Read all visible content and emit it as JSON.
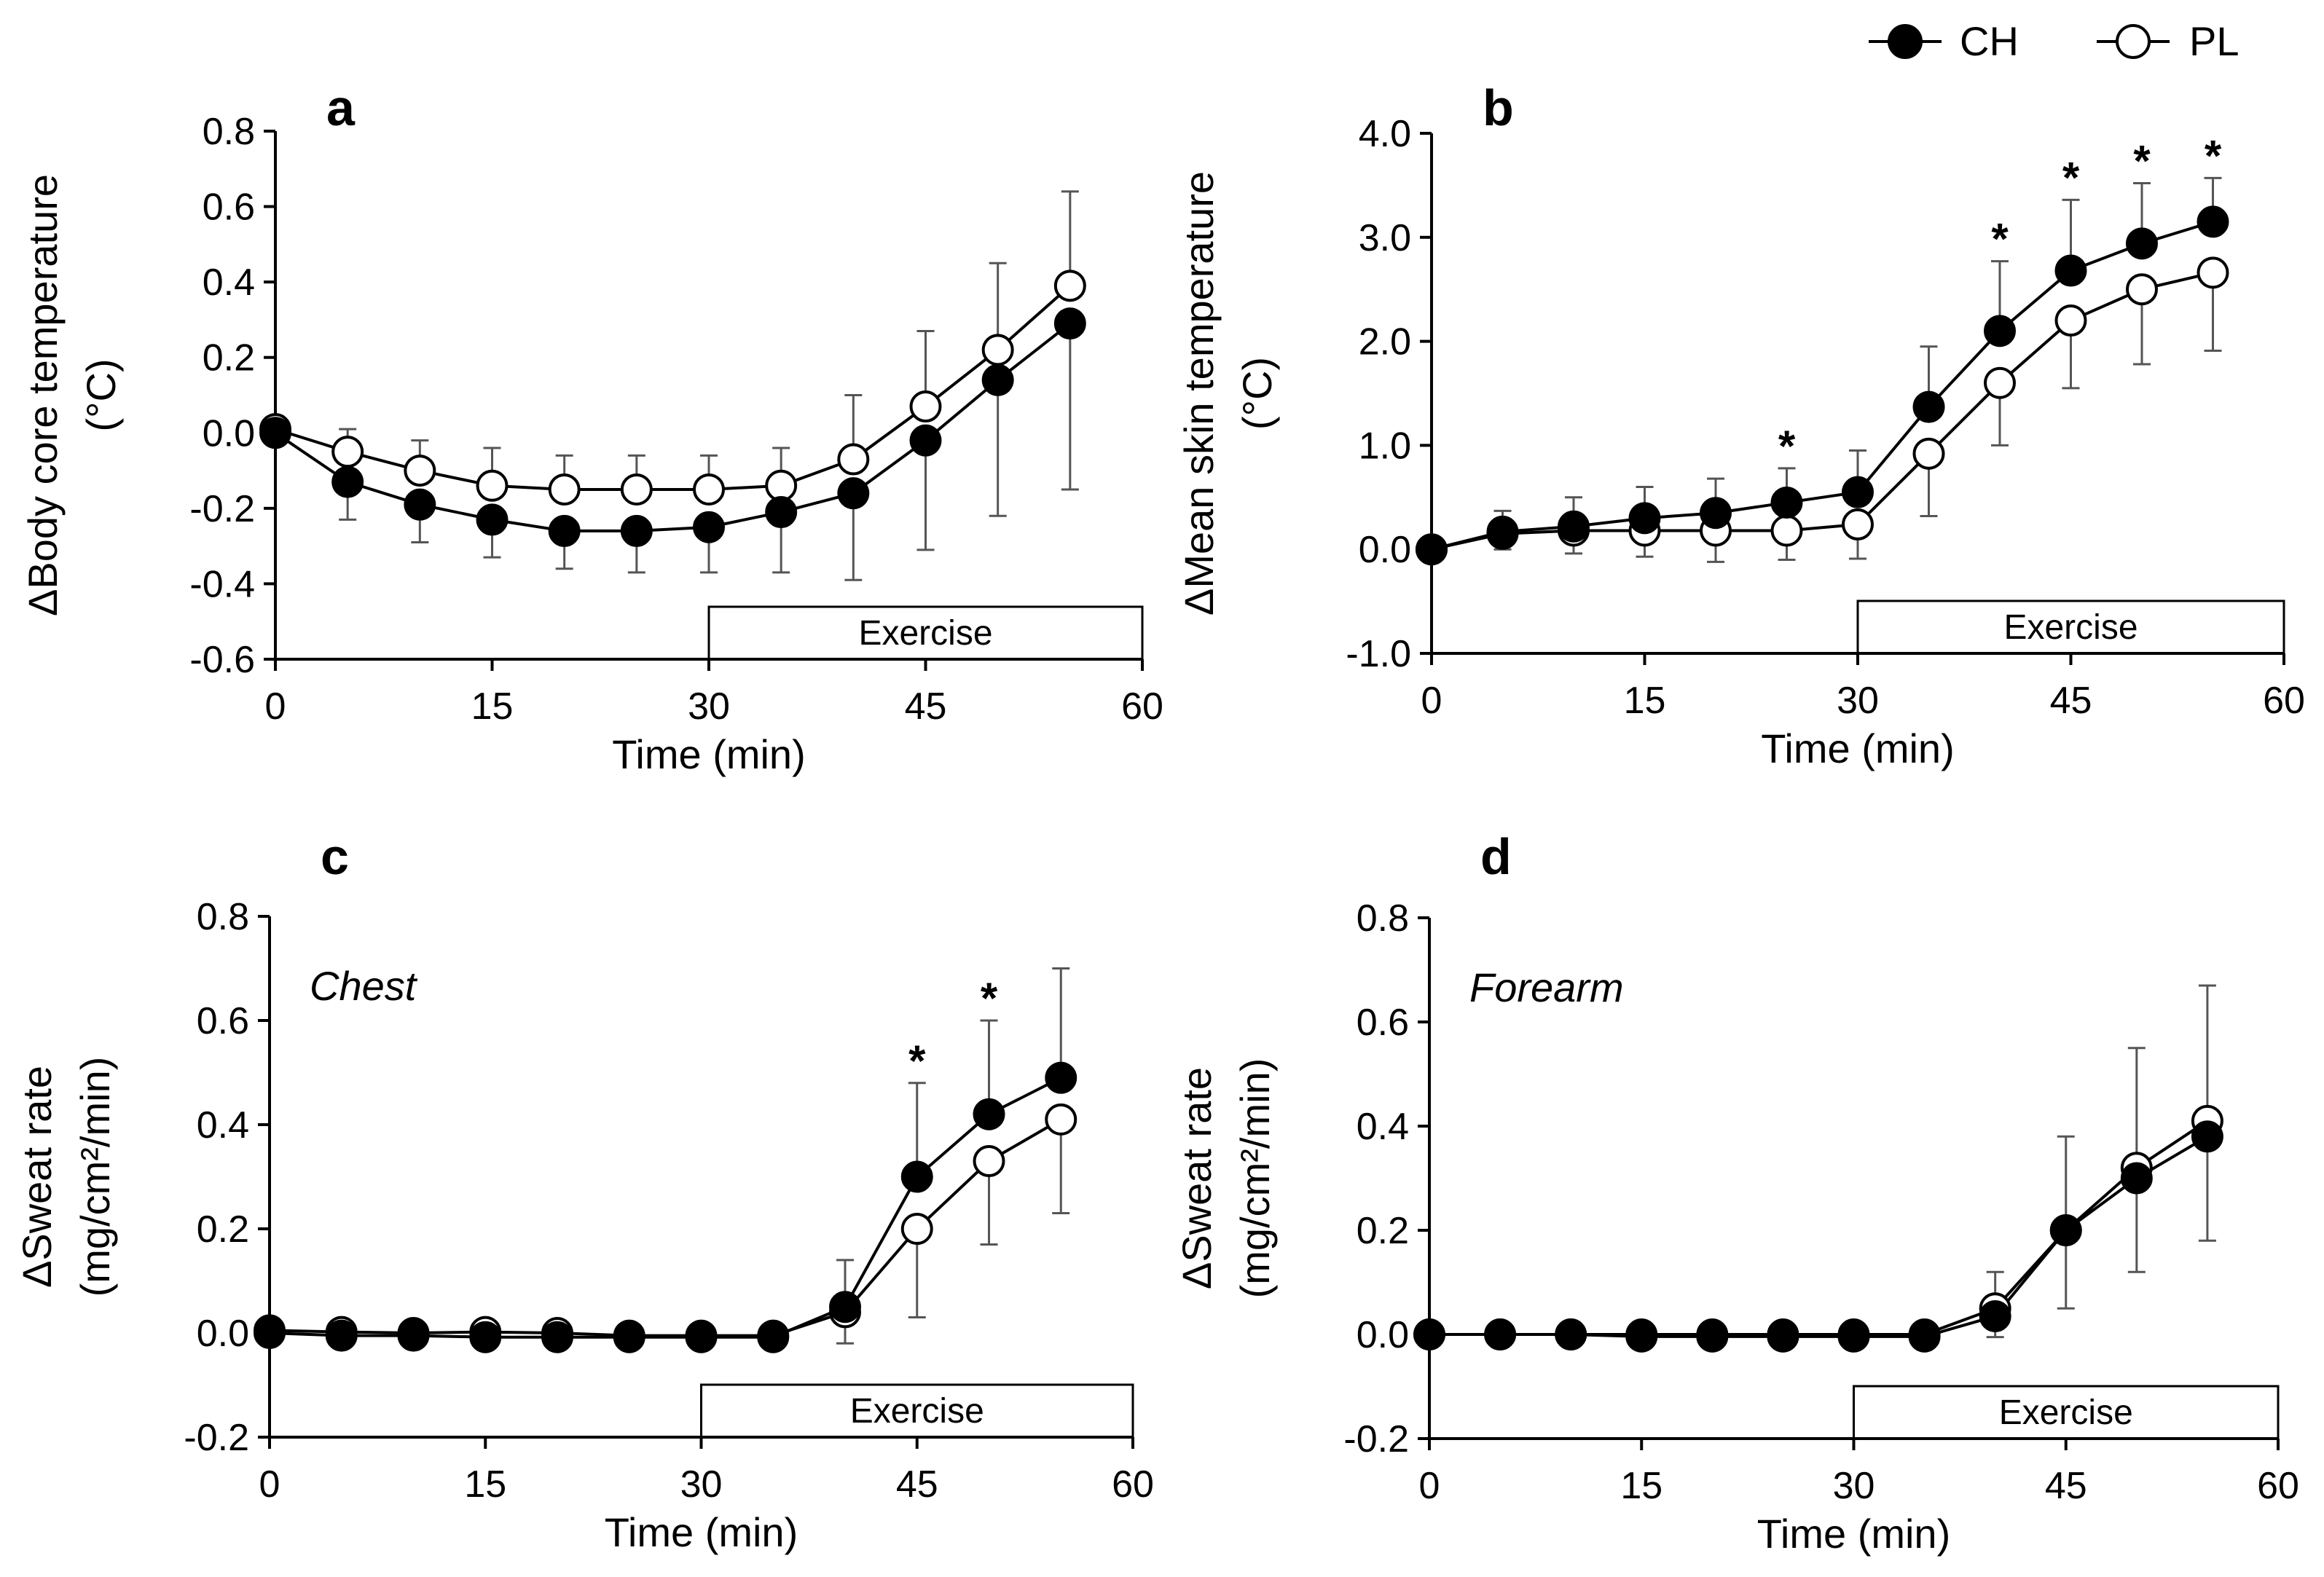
{
  "legend": {
    "ch_label": "CH",
    "pl_label": "PL"
  },
  "colors": {
    "ch_marker": "#000000",
    "pl_marker": "#ffffff",
    "axis": "#000000",
    "error_bar": "#555555"
  },
  "chart_data": [
    {
      "type": "line",
      "panel": "a",
      "xlabel": "Time (min)",
      "ylabel_line1": "ΔBody core temperature",
      "ylabel_line2": "(°C)",
      "x_ticks": [
        "0",
        "15",
        "30",
        "45",
        "60"
      ],
      "y_ticks": [
        "0.8",
        "0.6",
        "0.4",
        "0.2",
        "0.0",
        "-0.2",
        "-0.4",
        "-0.6"
      ],
      "xlim": [
        0,
        60
      ],
      "ylim": [
        -0.6,
        0.8
      ],
      "exercise_label": "Exercise",
      "exercise_range": [
        30,
        60
      ],
      "site_label": "",
      "x": [
        0,
        5,
        10,
        15,
        20,
        25,
        30,
        35,
        40,
        45,
        50,
        55
      ],
      "series": [
        {
          "name": "CH",
          "values": [
            0.0,
            -0.13,
            -0.19,
            -0.23,
            -0.26,
            -0.26,
            -0.25,
            -0.21,
            -0.16,
            -0.02,
            0.14,
            0.29
          ],
          "err": [
            0.0,
            0.1,
            0.1,
            0.1,
            0.1,
            0.11,
            0.12,
            0.16,
            0.23,
            0.29,
            0.36,
            0.44
          ],
          "err_dir": "down"
        },
        {
          "name": "PL",
          "values": [
            0.01,
            -0.05,
            -0.1,
            -0.14,
            -0.15,
            -0.15,
            -0.15,
            -0.14,
            -0.07,
            0.07,
            0.22,
            0.39
          ],
          "err": [
            0.0,
            0.06,
            0.08,
            0.1,
            0.09,
            0.09,
            0.09,
            0.1,
            0.17,
            0.2,
            0.23,
            0.25
          ],
          "err_dir": "up"
        }
      ],
      "significance": []
    },
    {
      "type": "line",
      "panel": "b",
      "xlabel": "Time (min)",
      "ylabel_line1": "ΔMean skin temperature",
      "ylabel_line2": "(°C)",
      "x_ticks": [
        "0",
        "15",
        "30",
        "45",
        "60"
      ],
      "y_ticks": [
        "4.0",
        "3.0",
        "2.0",
        "1.0",
        "0.0",
        "-1.0"
      ],
      "xlim": [
        0,
        60
      ],
      "ylim": [
        -1.0,
        4.0
      ],
      "exercise_label": "Exercise",
      "exercise_range": [
        30,
        60
      ],
      "site_label": "",
      "x": [
        0,
        5,
        10,
        15,
        20,
        25,
        30,
        35,
        40,
        45,
        50,
        55
      ],
      "series": [
        {
          "name": "CH",
          "values": [
            0.0,
            0.17,
            0.22,
            0.3,
            0.35,
            0.45,
            0.55,
            1.37,
            2.1,
            2.68,
            2.94,
            3.15
          ],
          "err": [
            0.0,
            0.2,
            0.28,
            0.3,
            0.33,
            0.33,
            0.4,
            0.58,
            0.67,
            0.68,
            0.58,
            0.42
          ],
          "err_dir": "up"
        },
        {
          "name": "PL",
          "values": [
            0.0,
            0.15,
            0.18,
            0.18,
            0.18,
            0.18,
            0.24,
            0.92,
            1.6,
            2.2,
            2.5,
            2.66
          ],
          "err": [
            0.0,
            0.15,
            0.22,
            0.25,
            0.3,
            0.28,
            0.33,
            0.6,
            0.6,
            0.65,
            0.72,
            0.75
          ],
          "err_dir": "down"
        }
      ],
      "significance": [
        {
          "x": 25,
          "label": "*"
        },
        {
          "x": 40,
          "label": "*"
        },
        {
          "x": 45,
          "label": "*"
        },
        {
          "x": 50,
          "label": "*"
        },
        {
          "x": 55,
          "label": "*"
        }
      ]
    },
    {
      "type": "line",
      "panel": "c",
      "xlabel": "Time (min)",
      "ylabel_line1": "ΔSweat rate",
      "ylabel_line2": "(mg/cm²/min)",
      "x_ticks": [
        "0",
        "15",
        "30",
        "45",
        "60"
      ],
      "y_ticks": [
        "0.8",
        "0.6",
        "0.4",
        "0.2",
        "0.0",
        "-0.2"
      ],
      "xlim": [
        0,
        60
      ],
      "ylim": [
        -0.2,
        0.8
      ],
      "exercise_label": "Exercise",
      "exercise_range": [
        30,
        60
      ],
      "site_label": "Chest",
      "x": [
        0,
        5,
        10,
        15,
        20,
        25,
        30,
        35,
        40,
        45,
        50,
        55
      ],
      "series": [
        {
          "name": "CH",
          "values": [
            0.0,
            -0.005,
            -0.005,
            -0.008,
            -0.008,
            -0.008,
            -0.008,
            -0.008,
            0.05,
            0.3,
            0.42,
            0.49
          ],
          "err": [
            0,
            0,
            0,
            0,
            0,
            0,
            0,
            0,
            0.09,
            0.18,
            0.18,
            0.21
          ],
          "err_dir": "up"
        },
        {
          "name": "PL",
          "values": [
            0.005,
            0.002,
            0.0,
            0.002,
            0.0,
            -0.005,
            -0.005,
            -0.005,
            0.04,
            0.2,
            0.33,
            0.41
          ],
          "err": [
            0,
            0,
            0,
            0,
            0,
            0,
            0,
            0,
            0.06,
            0.17,
            0.16,
            0.18
          ],
          "err_dir": "down"
        }
      ],
      "significance": [
        {
          "x": 45,
          "label": "*"
        },
        {
          "x": 50,
          "label": "*"
        }
      ]
    },
    {
      "type": "line",
      "panel": "d",
      "xlabel": "Time (min)",
      "ylabel_line1": "ΔSweat rate",
      "ylabel_line2": "(mg/cm²/min)",
      "x_ticks": [
        "0",
        "15",
        "30",
        "45",
        "60"
      ],
      "y_ticks": [
        "0.8",
        "0.6",
        "0.4",
        "0.2",
        "0.0",
        "-0.2"
      ],
      "xlim": [
        0,
        60
      ],
      "ylim": [
        -0.2,
        0.8
      ],
      "exercise_label": "Exercise",
      "exercise_range": [
        30,
        60
      ],
      "site_label": "Forearm",
      "x": [
        0,
        5,
        10,
        15,
        20,
        25,
        30,
        35,
        40,
        45,
        50,
        55
      ],
      "series": [
        {
          "name": "CH",
          "values": [
            0.0,
            0.0,
            0.0,
            -0.004,
            -0.004,
            -0.004,
            -0.004,
            -0.004,
            0.035,
            0.2,
            0.3,
            0.38
          ],
          "err": [
            0,
            0,
            0,
            0,
            0,
            0,
            0,
            0,
            0.04,
            0.15,
            0.18,
            0.2
          ],
          "err_dir": "down"
        },
        {
          "name": "PL",
          "values": [
            0.0,
            0.0,
            0.0,
            0.0,
            0.0,
            0.0,
            0.0,
            0.0,
            0.05,
            0.2,
            0.32,
            0.41
          ],
          "err": [
            0,
            0,
            0,
            0,
            0,
            0,
            0,
            0,
            0.07,
            0.18,
            0.23,
            0.26
          ],
          "err_dir": "up"
        }
      ],
      "significance": []
    }
  ]
}
